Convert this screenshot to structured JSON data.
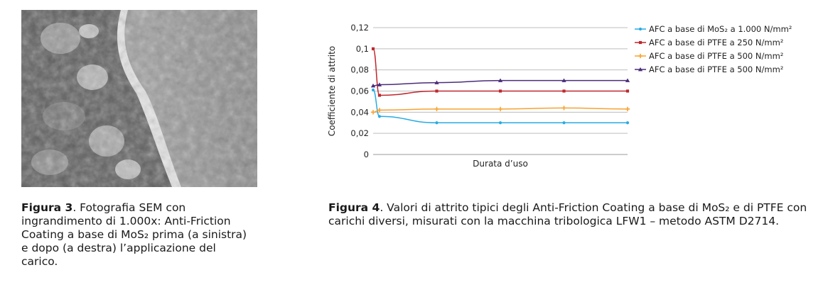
{
  "figure3": {
    "label": "Figura 3",
    "text": ". Fotografia SEM con ingrandimento di 1.000x: Anti-Friction Coating a base di MoS₂ prima (a sinistra) e dopo (a destra) l’applicazione del carico."
  },
  "figure4": {
    "label": "Figura 4",
    "text": ". Valori di attrito tipici degli Anti-Friction Coating a base di MoS₂ e di PTFE con carichi diversi, misurati con la macchina tribologica LFW1 – metodo ASTM D2714."
  },
  "chart_data": {
    "type": "line",
    "title": "",
    "xlabel": "Durata d’uso",
    "ylabel": "Coefficiente di attrito",
    "ylim": [
      0,
      0.12
    ],
    "yticks": [
      0,
      0.02,
      0.04,
      0.06,
      0.08,
      0.1,
      0.12
    ],
    "ytick_labels": [
      "0",
      "0,02",
      "0,04",
      "0,06",
      "0,08",
      "0,1",
      "0,12"
    ],
    "grid": true,
    "legend": "right",
    "x": [
      0,
      1,
      10,
      20,
      30,
      40
    ],
    "series": [
      {
        "name": "AFC a base di MoS₂ a 1.000 N/mm²",
        "color": "#29abe2",
        "marker": "dot",
        "values": [
          0.061,
          0.036,
          0.03,
          0.03,
          0.03,
          0.03
        ]
      },
      {
        "name": "AFC a base di PTFE a 250 N/mm²",
        "color": "#c0272d",
        "marker": "square",
        "values": [
          0.1,
          0.056,
          0.06,
          0.06,
          0.06,
          0.06
        ]
      },
      {
        "name": "AFC a base di PTFE a 500 N/mm²",
        "color": "#f7a231",
        "marker": "plus",
        "values": [
          0.04,
          0.042,
          0.043,
          0.043,
          0.044,
          0.043
        ]
      },
      {
        "name": "AFC a base di PTFE a 500 N/mm²",
        "color": "#4b2c7a",
        "marker": "triangle",
        "values": [
          0.065,
          0.066,
          0.068,
          0.07,
          0.07,
          0.07
        ]
      }
    ]
  }
}
